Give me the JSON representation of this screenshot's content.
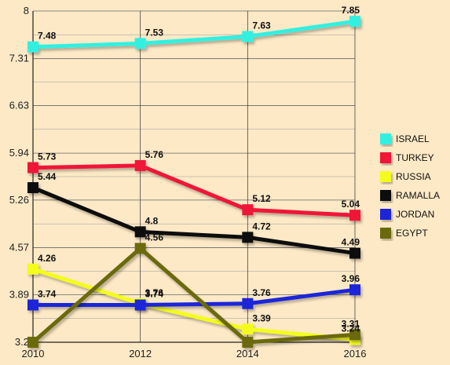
{
  "chart_data": {
    "type": "line",
    "x": [
      2010,
      2012,
      2014,
      2016
    ],
    "xticks": [
      "2010",
      "2012",
      "2014",
      "2016"
    ],
    "yticks": [
      "3.2",
      "3.89",
      "4.57",
      "5.26",
      "5.94",
      "6.63",
      "7.31",
      "8"
    ],
    "ylim": [
      3.2,
      8
    ],
    "grid": true,
    "legend_position": "right",
    "series": [
      {
        "name": "ISRAEL",
        "color": "#33f0e0",
        "values": [
          7.48,
          7.53,
          7.63,
          7.85
        ],
        "labels": [
          "7.48",
          "7.53",
          "7.63",
          "7.85"
        ]
      },
      {
        "name": "TURKEY",
        "color": "#f01838",
        "values": [
          5.73,
          5.76,
          5.12,
          5.04
        ],
        "labels": [
          "5.73",
          "5.76",
          "5.12",
          "5.04"
        ]
      },
      {
        "name": "RUSSIA",
        "color": "#f4fc1c",
        "values": [
          4.26,
          3.76,
          3.39,
          3.24
        ],
        "labels": [
          "4.26",
          "3.76",
          "3.39",
          "3.24"
        ]
      },
      {
        "name": "RAMALLA",
        "color": "#111111",
        "values": [
          5.44,
          4.8,
          4.72,
          4.49
        ],
        "labels": [
          "5.44",
          "4.8",
          "4.72",
          "4.49"
        ]
      },
      {
        "name": "JORDAN",
        "color": "#1f28d8",
        "values": [
          3.74,
          3.74,
          3.76,
          3.96
        ],
        "labels": [
          "3.74",
          "3.74",
          "3.76",
          "3.96"
        ]
      },
      {
        "name": "EGYPT",
        "color": "#6b6a0e",
        "values": [
          3.2,
          4.56,
          3.2,
          3.31
        ],
        "labels": [
          "",
          "4.56",
          "",
          "3.31"
        ]
      }
    ]
  }
}
